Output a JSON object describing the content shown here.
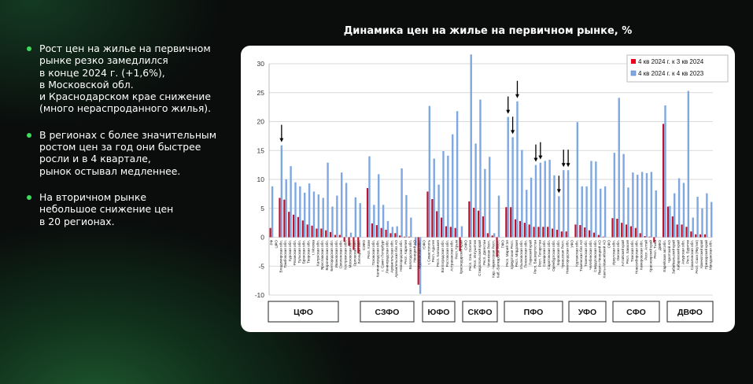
{
  "bullets": [
    "Рост цен на жилье на первичном\nрынке резко замедлился\nв конце 2024 г. (+1,6%),\nв Московской обл.\nи Краснодарском крае снижение\n(много нераспроданного жилья).",
    "В регионах с более значительным\nростом цен за год они быстрее\nросли и в 4 квартале,\nрынок остывал медленнее.",
    "На вторичном рынке\nнебольшое снижение цен\nв 20 регионах."
  ],
  "colors": {
    "bullet": "#3ddc5a",
    "red": "#c0142c",
    "blue": "#7fa8e0",
    "legend_red": "#e8001c"
  },
  "chart_data": {
    "type": "bar",
    "title": "Динамика цен на жилье на первичном рынке, %",
    "ylim": [
      -10,
      30
    ],
    "yticks": [
      30,
      25,
      20,
      15,
      10,
      5,
      0,
      -5,
      -10
    ],
    "grid": true,
    "legend_position": "top-right",
    "series": [
      {
        "name": "4 кв 2024 г. к 3 кв 2024",
        "key": "q"
      },
      {
        "name": "4 кв 2024 г. к 4 кв 2023",
        "key": "y"
      }
    ],
    "districts": [
      "ЦФО",
      "СЗФО",
      "ЮФО",
      "СКФО",
      "ПФО",
      "УФО",
      "СФО",
      "ДВФО"
    ],
    "arrows": [
      "Владимирская обл.",
      "Респ. Марий Эл",
      "Удмуртская Респ.",
      "Респ. Мордовия",
      "Респ. Башкортостан",
      "Респ. Татарстан",
      "Кировская обл.",
      "Чувашская Респ.",
      "Нижегородская обл."
    ],
    "categories": [
      {
        "name": "РФ",
        "q": 1.6,
        "y": 8.8
      },
      {
        "name": "ЦФО",
        "q": null,
        "y": null
      },
      {
        "name": "Владимирская обл.",
        "q": 6.8,
        "y": 15.9
      },
      {
        "name": "Тамбовская обл.",
        "q": 6.5,
        "y": 10.0
      },
      {
        "name": "Курская обл.",
        "q": 4.4,
        "y": 12.3
      },
      {
        "name": "Рязанская обл.",
        "q": 3.9,
        "y": 9.5
      },
      {
        "name": "Тульская обл.",
        "q": 3.5,
        "y": 8.8
      },
      {
        "name": "Брянская обл.",
        "q": 2.9,
        "y": 7.7
      },
      {
        "name": "Тверская обл.",
        "q": 2.2,
        "y": 9.3
      },
      {
        "name": "г. Москва",
        "q": 2.0,
        "y": 7.9
      },
      {
        "name": "Калужская обл.",
        "q": 1.5,
        "y": 7.4
      },
      {
        "name": "Ярославская обл.",
        "q": 1.5,
        "y": 6.8
      },
      {
        "name": "Воронежская обл.",
        "q": 1.2,
        "y": 12.9
      },
      {
        "name": "Белгородская обл.",
        "q": 0.9,
        "y": 5.3
      },
      {
        "name": "Ивановская обл.",
        "q": 0.4,
        "y": 7.2
      },
      {
        "name": "Смоленская обл.",
        "q": 0.4,
        "y": 11.2
      },
      {
        "name": "Костромская обл.",
        "q": -0.8,
        "y": 9.4
      },
      {
        "name": "Московская обл.",
        "q": -1.5,
        "y": 0.8
      },
      {
        "name": "Орловская обл.",
        "q": -2.2,
        "y": 6.9
      },
      {
        "name": "Липецкая обл.",
        "q": -2.8,
        "y": 5.9
      },
      {
        "name": "СЗФО",
        "q": null,
        "y": null
      },
      {
        "name": "Респ. Коми",
        "q": 8.5,
        "y": 14.0
      },
      {
        "name": "Псковская обл.",
        "q": 2.4,
        "y": 5.6
      },
      {
        "name": "Калининградская обл.",
        "q": 2.1,
        "y": 10.9
      },
      {
        "name": "г. Санкт-Петербург",
        "q": 1.6,
        "y": 5.6
      },
      {
        "name": "Ленинградская обл.",
        "q": 1.3,
        "y": 2.8
      },
      {
        "name": "Архангельская обл.",
        "q": 0.7,
        "y": 1.8
      },
      {
        "name": "Архангельская без АО",
        "q": 0.7,
        "y": 1.9
      },
      {
        "name": "Новгородская обл.",
        "q": 0.3,
        "y": 11.9
      },
      {
        "name": "Респ. Карелия",
        "q": 0.1,
        "y": 7.3
      },
      {
        "name": "Вологодская обл.",
        "q": 0.1,
        "y": 3.4
      },
      {
        "name": "Ненецкий АО",
        "q": 0,
        "y": -1.5
      },
      {
        "name": "Мурманская обл.",
        "q": -8.2,
        "y": -9.8
      },
      {
        "name": "ЮФО",
        "q": null,
        "y": null
      },
      {
        "name": "г. Севастополь",
        "q": 7.9,
        "y": 22.7
      },
      {
        "name": "Респ. Адыгея",
        "q": 6.6,
        "y": 13.6
      },
      {
        "name": "Респ. Калмыкия",
        "q": 4.5,
        "y": 9.1
      },
      {
        "name": "Волгоградская обл.",
        "q": 3.4,
        "y": 14.9
      },
      {
        "name": "Ростовская обл.",
        "q": 1.9,
        "y": 14.1
      },
      {
        "name": "Астраханская обл.",
        "q": 1.8,
        "y": 17.8
      },
      {
        "name": "Респ. Крым",
        "q": 1.6,
        "y": 21.8
      },
      {
        "name": "Краснодарский край",
        "q": -2.4,
        "y": 1.9
      },
      {
        "name": "СКФО",
        "q": null,
        "y": null
      },
      {
        "name": "Респ. Сев. Осетия",
        "q": 6.2,
        "y": 31.6
      },
      {
        "name": "Респ. Ингушетия",
        "q": 5.1,
        "y": 16.2
      },
      {
        "name": "Ставропольский край",
        "q": 4.6,
        "y": 23.8
      },
      {
        "name": "Респ. Дагестан",
        "q": 3.6,
        "y": 11.8
      },
      {
        "name": "Чеченская Респ.",
        "q": 0.7,
        "y": 13.9
      },
      {
        "name": "Кар.-Черкесская Респ.",
        "q": 0.3,
        "y": 0.7
      },
      {
        "name": "Каб.-Балкарская Респ.",
        "q": -3.4,
        "y": 7.2
      },
      {
        "name": "ПФО",
        "q": null,
        "y": null
      },
      {
        "name": "Респ. Марий Эл",
        "q": 5.2,
        "y": 20.8
      },
      {
        "name": "Удмуртская Респ.",
        "q": 5.2,
        "y": 17.3
      },
      {
        "name": "Респ. Мордовия",
        "q": 3.1,
        "y": 23.5
      },
      {
        "name": "Ульяновская обл.",
        "q": 2.8,
        "y": 15.1
      },
      {
        "name": "Пензенская обл.",
        "q": 2.5,
        "y": 8.2
      },
      {
        "name": "Пермский край",
        "q": 2.2,
        "y": 10.3
      },
      {
        "name": "Респ. Башкортостан",
        "q": 1.8,
        "y": 12.5
      },
      {
        "name": "Респ. Татарстан",
        "q": 1.8,
        "y": 12.9
      },
      {
        "name": "Самарская обл.",
        "q": 1.8,
        "y": 13.2
      },
      {
        "name": "Саратовская обл.",
        "q": 1.8,
        "y": 13.4
      },
      {
        "name": "Оренбургская обл.",
        "q": 1.5,
        "y": 10.7
      },
      {
        "name": "Кировская обл.",
        "q": 1.3,
        "y": 7.1
      },
      {
        "name": "Чувашская Респ.",
        "q": 1.0,
        "y": 11.6
      },
      {
        "name": "Нижегородская обл.",
        "q": 1.0,
        "y": 11.6
      },
      {
        "name": "УФО",
        "q": null,
        "y": null
      },
      {
        "name": "Курганская обл.",
        "q": 2.2,
        "y": 19.9
      },
      {
        "name": "Тюменская без АО",
        "q": 2.1,
        "y": 8.8
      },
      {
        "name": "Тюменская обл.",
        "q": 1.7,
        "y": 8.8
      },
      {
        "name": "Челябинская обл.",
        "q": 1.2,
        "y": 13.2
      },
      {
        "name": "Свердловская обл.",
        "q": 0.8,
        "y": 13.1
      },
      {
        "name": "Ямало-Ненецкий АО",
        "q": 0.4,
        "y": 8.4
      },
      {
        "name": "Ханты-Мансийский АО",
        "q": 0.1,
        "y": 8.8
      },
      {
        "name": "СФО",
        "q": null,
        "y": null
      },
      {
        "name": "Иркутская обл.",
        "q": 3.3,
        "y": 14.6
      },
      {
        "name": "Омская обл.",
        "q": 3.2,
        "y": 24.1
      },
      {
        "name": "Алтайский край",
        "q": 2.5,
        "y": 14.4
      },
      {
        "name": "Респ. Хакасия",
        "q": 2.2,
        "y": 8.6
      },
      {
        "name": "Томская обл.",
        "q": 1.9,
        "y": 11.2
      },
      {
        "name": "Новосибирская обл.",
        "q": 1.6,
        "y": 10.8
      },
      {
        "name": "Кемеровская обл.",
        "q": 0.7,
        "y": 11.3
      },
      {
        "name": "Респ. Алтай",
        "q": 0.2,
        "y": 11.1
      },
      {
        "name": "Красноярский край",
        "q": 0.1,
        "y": 11.3
      },
      {
        "name": "Респ. Тыва",
        "q": -0.9,
        "y": 8.1
      },
      {
        "name": "ДВФО",
        "q": null,
        "y": null
      },
      {
        "name": "Еврейская авт.обл.",
        "q": 19.6,
        "y": 22.8
      },
      {
        "name": "Чукотский АО",
        "q": 5.3,
        "y": 5.4
      },
      {
        "name": "Забайкальский край",
        "q": 3.6,
        "y": 7.6
      },
      {
        "name": "Хабаровский край",
        "q": 2.2,
        "y": 10.2
      },
      {
        "name": "Амурская обл.",
        "q": 2.2,
        "y": 9.4
      },
      {
        "name": "Респ. Бурятия",
        "q": 1.8,
        "y": 25.3
      },
      {
        "name": "Сахалинская обл.",
        "q": 1.0,
        "y": 3.4
      },
      {
        "name": "Респ. Саха (Якутия)",
        "q": 0.5,
        "y": 7.0
      },
      {
        "name": "Камчатский край",
        "q": 0.5,
        "y": 5.0
      },
      {
        "name": "Приморский край",
        "q": 0.5,
        "y": 7.6
      },
      {
        "name": "Магаданская обл.",
        "q": 0,
        "y": 6.1
      }
    ]
  }
}
